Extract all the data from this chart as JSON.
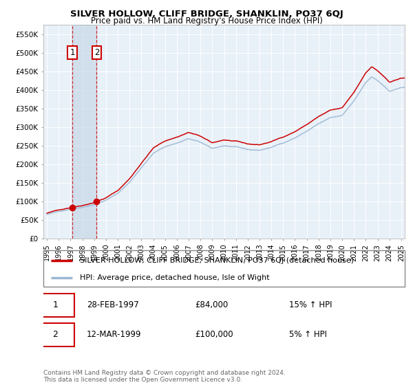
{
  "title": "SILVER HOLLOW, CLIFF BRIDGE, SHANKLIN, PO37 6QJ",
  "subtitle": "Price paid vs. HM Land Registry's House Price Index (HPI)",
  "legend_line1": "SILVER HOLLOW, CLIFF BRIDGE, SHANKLIN, PO37 6QJ (detached house)",
  "legend_line2": "HPI: Average price, detached house, Isle of Wight",
  "footer": "Contains HM Land Registry data © Crown copyright and database right 2024.\nThis data is licensed under the Open Government Licence v3.0.",
  "sale1_label": "1",
  "sale1_date": "28-FEB-1997",
  "sale1_price": "£84,000",
  "sale1_hpi": "15% ↑ HPI",
  "sale1_year": 1997.15,
  "sale1_value": 84000,
  "sale2_label": "2",
  "sale2_date": "12-MAR-1999",
  "sale2_price": "£100,000",
  "sale2_hpi": "5% ↑ HPI",
  "sale2_year": 1999.21,
  "sale2_value": 100000,
  "ylim": [
    0,
    575000
  ],
  "xlim_start": 1994.7,
  "xlim_end": 2025.3,
  "yticks": [
    0,
    50000,
    100000,
    150000,
    200000,
    250000,
    300000,
    350000,
    400000,
    450000,
    500000,
    550000
  ],
  "ytick_labels": [
    "£0",
    "£50K",
    "£100K",
    "£150K",
    "£200K",
    "£250K",
    "£300K",
    "£350K",
    "£400K",
    "£450K",
    "£500K",
    "£550K"
  ],
  "xticks": [
    1995,
    1996,
    1997,
    1998,
    1999,
    2000,
    2001,
    2002,
    2003,
    2004,
    2005,
    2006,
    2007,
    2008,
    2009,
    2010,
    2011,
    2012,
    2013,
    2014,
    2015,
    2016,
    2017,
    2018,
    2019,
    2020,
    2021,
    2022,
    2023,
    2024,
    2025
  ],
  "hpi_color": "#9bb8d4",
  "price_color": "#cc0000",
  "bg_color": "#e8f0f8",
  "grid_color": "#ffffff",
  "sale_line_color": "#cc0000",
  "marker_color": "#cc0000",
  "shade_color": "#c8d8e8"
}
